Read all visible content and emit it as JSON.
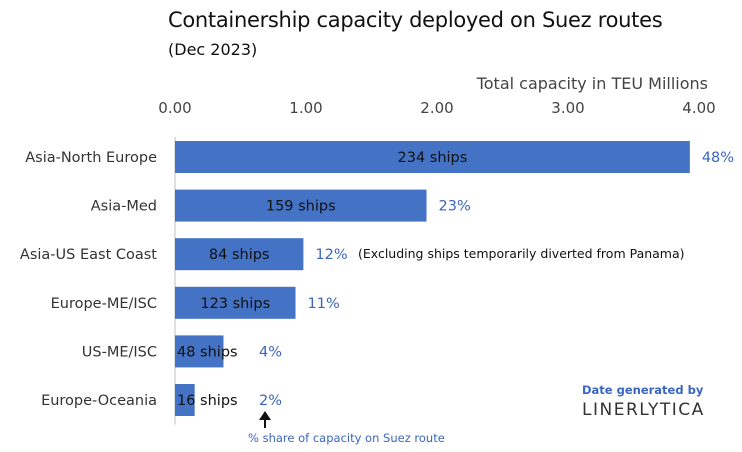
{
  "chart_data": {
    "type": "bar",
    "orientation": "horizontal",
    "title": "Containership capacity deployed on Suez routes",
    "subtitle": "(Dec 2023)",
    "xlabel": "Total capacity in TEU Millions",
    "ylabel": "",
    "xlim": [
      0,
      4
    ],
    "x_ticks": [
      "0.00",
      "1.00",
      "2.00",
      "3.00",
      "4.00"
    ],
    "x_tick_values": [
      0,
      1,
      2,
      3,
      4
    ],
    "categories": [
      "Asia-North Europe",
      "Asia-Med",
      "Asia-US East Coast",
      "Europe-ME/ISC",
      "US-ME/ISC",
      "Europe-Oceania"
    ],
    "values": [
      3.93,
      1.92,
      0.98,
      0.92,
      0.37,
      0.15
    ],
    "ship_labels": [
      "234 ships",
      "159 ships",
      "84 ships",
      "123 ships",
      "48 ships",
      "16 ships"
    ],
    "share_labels": [
      "48%",
      "23%",
      "12%",
      "11%",
      "4%",
      "2%"
    ],
    "annotation": "(Excluding ships temporarily diverted from Panama)",
    "share_caption": "% share of capacity on Suez route",
    "credit_line1": "Date generated by",
    "credit_line2": "LINERLYTICA",
    "bar_color": "#4472c4",
    "share_color": "#3b66bf",
    "grid": false
  }
}
